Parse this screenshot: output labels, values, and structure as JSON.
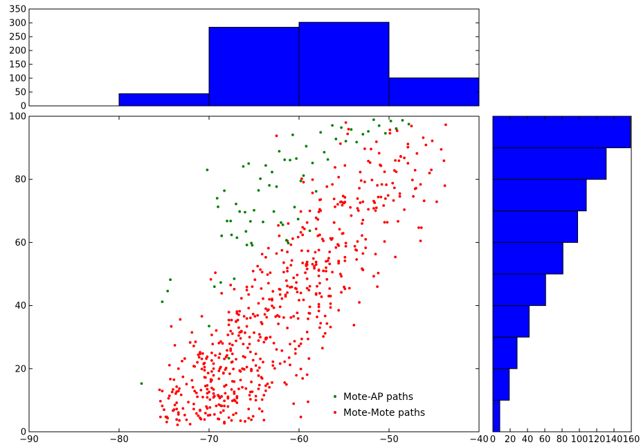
{
  "chart_data": [
    {
      "type": "bar",
      "role": "top-marginal-histogram",
      "bins": [
        [
          -90,
          -80
        ],
        [
          -80,
          -70
        ],
        [
          -70,
          -60
        ],
        [
          -60,
          -50
        ],
        [
          -50,
          -40
        ]
      ],
      "values": [
        0,
        44,
        284,
        302,
        101
      ],
      "ylim": [
        0,
        350
      ],
      "yticks": [
        "0",
        "50",
        "100",
        "150",
        "200",
        "250",
        "300",
        "350"
      ],
      "color": "#0000ff"
    },
    {
      "type": "scatter",
      "role": "main-scatter",
      "xlim": [
        -90,
        -40
      ],
      "ylim": [
        0,
        100
      ],
      "xticks": [
        "−90",
        "−80",
        "−70",
        "−60",
        "−50",
        "−40"
      ],
      "yticks": [
        "0",
        "20",
        "40",
        "60",
        "80",
        "100"
      ],
      "legend_position": "lower-right",
      "series": [
        {
          "name": "Mote-AP paths",
          "color": "#008000",
          "x": [
            -77.5,
            -75.2,
            -74.6,
            -74.3,
            -70.2,
            -70.0,
            -69.4,
            -69.1,
            -68.7,
            -68.6,
            -68.3,
            -68.0,
            -67.8,
            -67.6,
            -67.2,
            -67.0,
            -66.9,
            -66.6,
            -66.2,
            -66.0,
            -65.8,
            -65.6,
            -65.4,
            -65.3,
            -65.2,
            -65.0,
            -64.5,
            -64.3,
            -64.0,
            -63.7,
            -63.3,
            -63.0,
            -62.8,
            -62.5,
            -62.2,
            -62.0,
            -61.8,
            -61.6,
            -61.4,
            -61.2,
            -61.0,
            -60.7,
            -60.5,
            -60.3,
            -60.1,
            -59.8,
            -59.5,
            -59.2,
            -58.8,
            -58.5,
            -58.1,
            -57.6,
            -57.2,
            -56.8,
            -56.3,
            -55.9,
            -55.3,
            -54.8,
            -54.2,
            -53.6,
            -52.9,
            -52.3,
            -51.7,
            -51.1,
            -50.4,
            -49.8,
            -49.2,
            -48.5,
            -47.8,
            -67.5,
            -69.0,
            -65.9
          ],
          "y": [
            15.3,
            41.2,
            44.6,
            48.2,
            83.0,
            33.5,
            46.0,
            74.0,
            47.3,
            62.1,
            76.4,
            66.8,
            23.3,
            66.8,
            48.5,
            72.2,
            61.5,
            69.8,
            84.1,
            69.6,
            59.2,
            85.0,
            66.7,
            59.8,
            59.1,
            70.2,
            76.5,
            80.2,
            66.5,
            84.4,
            78.1,
            82.3,
            69.8,
            77.7,
            88.9,
            66.3,
            65.6,
            86.2,
            60.7,
            59.8,
            86.1,
            94.1,
            71.2,
            86.6,
            67.4,
            79.5,
            81.2,
            90.5,
            63.7,
            85.2,
            76.2,
            94.9,
            88.6,
            86.3,
            97.1,
            92.8,
            96.4,
            92.1,
            95.8,
            91.8,
            94.3,
            95.2,
            98.9,
            97.0,
            94.6,
            98.5,
            96.1,
            98.7,
            97.5,
            62.4,
            71.3,
            63.5
          ]
        },
        {
          "name": "Mote-Mote paths",
          "color": "#ff0000",
          "x": [],
          "y": []
        }
      ]
    },
    {
      "type": "bar",
      "role": "right-marginal-histogram",
      "orientation": "horizontal",
      "bins": [
        [
          0,
          10
        ],
        [
          10,
          20
        ],
        [
          20,
          30
        ],
        [
          30,
          40
        ],
        [
          40,
          50
        ],
        [
          50,
          60
        ],
        [
          60,
          70
        ],
        [
          70,
          80
        ],
        [
          80,
          90
        ],
        [
          90,
          100
        ]
      ],
      "values": [
        8,
        19,
        28,
        42,
        61,
        81,
        98,
        108,
        131,
        159
      ],
      "xlim": [
        0,
        160
      ],
      "xticks": [
        "0",
        "20",
        "40",
        "60",
        "80",
        "100",
        "120",
        "140",
        "160"
      ],
      "color": "#0000ff"
    }
  ]
}
